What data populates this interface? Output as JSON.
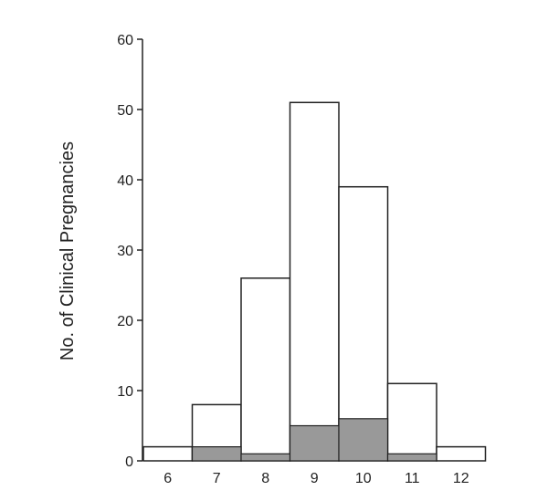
{
  "chart_data": {
    "type": "bar",
    "title": "",
    "xlabel": "",
    "ylabel": "No. of Clinical Pregnancies",
    "categories": [
      "6",
      "7",
      "8",
      "9",
      "10",
      "11",
      "12"
    ],
    "series": [
      {
        "values": [
          2,
          8,
          26,
          51,
          39,
          11,
          2
        ],
        "color": "#ffffff"
      },
      {
        "values": [
          0,
          2,
          1,
          5,
          6,
          1,
          0
        ],
        "color": "#999999"
      }
    ],
    "ylim": [
      0,
      60
    ],
    "yticks": [
      0,
      10,
      20,
      30,
      40,
      50,
      60
    ],
    "grid": false,
    "legend": "none"
  }
}
